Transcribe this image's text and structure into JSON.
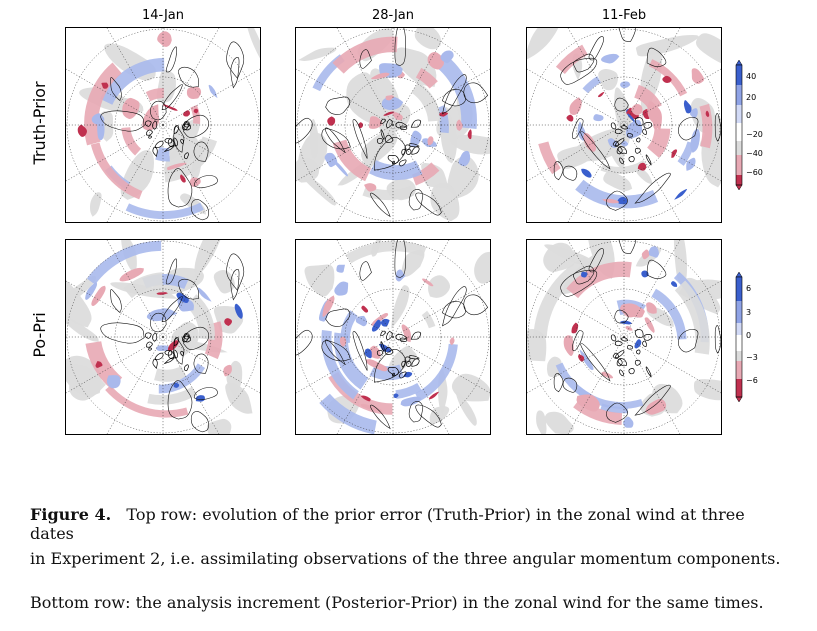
{
  "figure": {
    "columns": [
      "14-Jan",
      "28-Jan",
      "11-Feb"
    ],
    "rows": [
      "Truth-Prior",
      "Po-Pri"
    ],
    "colorbars": [
      {
        "ticks": [
          "40",
          "20",
          "0",
          "−20",
          "−40",
          "−60"
        ]
      },
      {
        "ticks": [
          "6",
          "3",
          "0",
          "−3",
          "−6"
        ]
      }
    ],
    "colors": {
      "blue_strong": "#3a5fcd",
      "blue_light": "#a9b9ec",
      "gray": "#dcdcdc",
      "pink_light": "#e8a9b4",
      "red_strong": "#c0304f"
    }
  },
  "caption": {
    "label": "Figure 4.",
    "line1": "Top row: evolution of the prior error (Truth-Prior) in the zonal wind at three dates",
    "line2": "in Experiment 2, i.e.  assimilating observations of the three angular momentum components.",
    "line3": "Bottom row: the analysis increment (Posterior-Prior) in the zonal wind for the same times."
  }
}
